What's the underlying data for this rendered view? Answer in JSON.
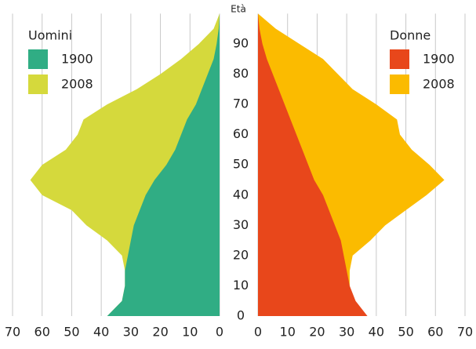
{
  "chart_data": {
    "type": "pyramid",
    "y_label": "Età",
    "ages": [
      0,
      5,
      10,
      15,
      20,
      25,
      30,
      35,
      40,
      45,
      50,
      55,
      60,
      65,
      70,
      75,
      80,
      85,
      90,
      95,
      100
    ],
    "ylim": [
      0,
      100
    ],
    "yticks": [
      0,
      10,
      20,
      30,
      40,
      50,
      60,
      70,
      80,
      90
    ],
    "xlim": [
      0,
      70
    ],
    "xticks": [
      0,
      10,
      20,
      30,
      40,
      50,
      60,
      70
    ],
    "grid": true,
    "panels": [
      {
        "name": "Uomini",
        "side": "left",
        "series": [
          {
            "name": "2008",
            "color": "#d5d93c",
            "values": [
              38,
              33,
              32,
              32,
              33,
              38,
              45,
              50,
              60,
              64,
              60,
              52,
              48,
              46,
              38,
              28,
              20,
              13,
              7,
              2,
              0
            ]
          },
          {
            "name": "1900",
            "color": "#30ad84",
            "values": [
              38,
              33,
              32,
              32,
              31,
              30,
              29,
              27,
              25,
              22,
              18,
              15,
              13,
              11,
              8,
              6,
              4,
              2,
              1,
              0.3,
              0
            ]
          }
        ]
      },
      {
        "name": "Donne",
        "side": "right",
        "series": [
          {
            "name": "2008",
            "color": "#fbbb00",
            "values": [
              36,
              32,
              31,
              31,
              32,
              38,
              43,
              50,
              57,
              63,
              58,
              52,
              48,
              47,
              40,
              32,
              27,
              22,
              14,
              6,
              0
            ]
          },
          {
            "name": "1900",
            "color": "#e8471b",
            "values": [
              37,
              33,
              31,
              30,
              29,
              28,
              26,
              24,
              22,
              19,
              17,
              15,
              13,
              11,
              9,
              7,
              5,
              3,
              1.5,
              0.5,
              0
            ]
          }
        ]
      }
    ]
  }
}
